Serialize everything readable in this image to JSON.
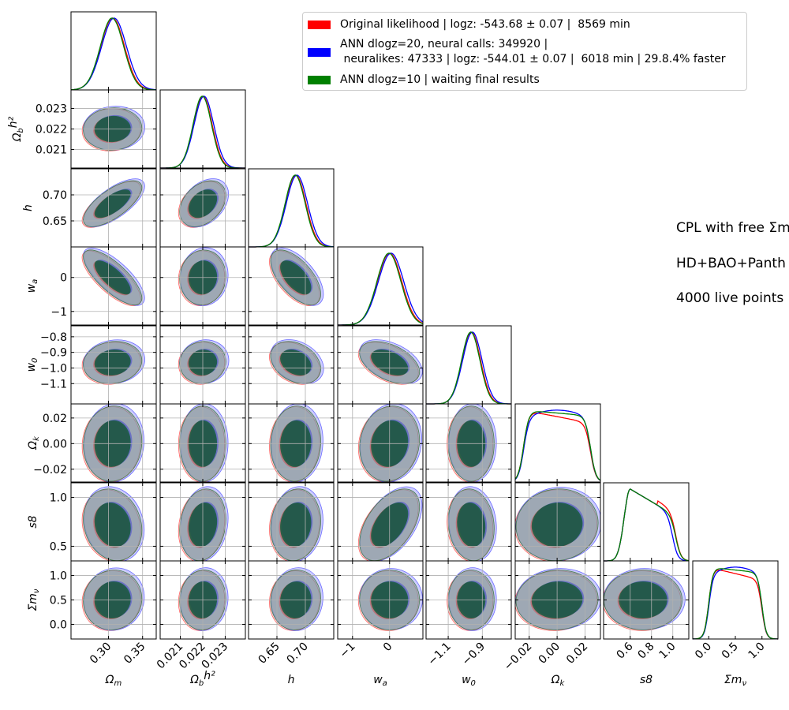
{
  "chart_data": {
    "type": "corner",
    "parameters": [
      {
        "key": "Om",
        "label": "Ω",
        "sub": "m",
        "sup": "",
        "range": [
          0.245,
          0.37
        ],
        "ticks": [
          0.3,
          0.35
        ],
        "tick_labels": [
          "0.30",
          "0.35"
        ],
        "mean": 0.306,
        "sd": 0.0175
      },
      {
        "key": "Obh2",
        "label": "Ω",
        "sub": "b",
        "sup": "h²",
        "range": [
          0.0201,
          0.0239
        ],
        "ticks": [
          0.021,
          0.022,
          0.023
        ],
        "tick_labels": [
          "0.021",
          "0.022",
          "0.023"
        ],
        "mean": 0.022,
        "sd": 0.00042
      },
      {
        "key": "h",
        "label": "h",
        "sub": "",
        "sup": "",
        "range": [
          0.6,
          0.75
        ],
        "ticks": [
          0.65,
          0.7
        ],
        "tick_labels": [
          "0.65",
          "0.70"
        ],
        "mean": 0.683,
        "sd": 0.018
      },
      {
        "key": "wa",
        "label": "w",
        "sub": "a",
        "sup": "",
        "range": [
          -1.4,
          0.9
        ],
        "ticks": [
          -1,
          0
        ],
        "tick_labels": [
          "−1",
          "0"
        ],
        "mean": 0.0,
        "sd": 0.33
      },
      {
        "key": "w0",
        "label": "w",
        "sub": "0",
        "sup": "",
        "range": [
          -1.23,
          -0.73
        ],
        "ticks": [
          -1.1,
          -0.9
        ],
        "tick_labels": [
          "−1.1",
          "−0.9"
        ],
        "y_ticks": [
          -0.8,
          -0.9,
          -1.0,
          -1.1
        ],
        "y_tick_labels": [
          "−0.8",
          "−0.9",
          "−1.0",
          "−1.1"
        ],
        "mean": -0.965,
        "sd": 0.055
      },
      {
        "key": "Ok",
        "label": "Ω",
        "sub": "k",
        "sup": "",
        "range": [
          -0.03,
          0.031
        ],
        "ticks": [
          -0.02,
          0.0,
          0.02
        ],
        "tick_labels": [
          "−0.02",
          "0.00",
          "0.02"
        ],
        "mean": 0.0,
        "sd": 0.012
      },
      {
        "key": "s8",
        "label": "s8",
        "sub": "",
        "sup": "",
        "range": [
          0.35,
          1.15
        ],
        "ticks": [
          0.6,
          0.8,
          1.0
        ],
        "tick_labels": [
          "0.6",
          "0.8",
          "1.0"
        ],
        "y_ticks": [
          1.0,
          0.5
        ],
        "y_tick_labels": [
          "1.0",
          "0.5"
        ],
        "mean": 0.72,
        "sd": 0.15
      },
      {
        "key": "mnu",
        "label": "Σm",
        "sub": "ν",
        "sup": "",
        "range": [
          -0.3,
          1.3
        ],
        "ticks": [
          0.0,
          0.5,
          1.0
        ],
        "tick_labels": [
          "0.0",
          "0.5",
          "1.0"
        ],
        "mean": 0.5,
        "sd": 0.25
      }
    ],
    "series": [
      {
        "name": "Original likelihood | logz: -543.68 ± 0.07 |  8569 min",
        "color": "#ff0000"
      },
      {
        "name": "ANN dlogz=20, neural calls: 349920 |\n neuralikes: 47333 | logz: -544.01 ± 0.07 |  6018 min | 29.8.4% faster",
        "color": "#0000ff"
      },
      {
        "name": "ANN dlogz=10 | waiting final results",
        "color": "#008000"
      }
    ],
    "correlations": [
      [
        1.0,
        0,
        0,
        0,
        0,
        0,
        0,
        0
      ],
      [
        0.05,
        1.0,
        0,
        0,
        0,
        0,
        0,
        0
      ],
      [
        0.7,
        0.35,
        1.0,
        0,
        0,
        0,
        0,
        0
      ],
      [
        -0.75,
        0.05,
        -0.6,
        1.0,
        0,
        0,
        0,
        0
      ],
      [
        0.1,
        0.05,
        -0.3,
        -0.45,
        1.0,
        0,
        0,
        0
      ],
      [
        0.05,
        0.0,
        0.05,
        0.1,
        0.0,
        1.0,
        0,
        0
      ],
      [
        -0.15,
        0.15,
        0.1,
        0.5,
        -0.1,
        0.05,
        1.0,
        0
      ],
      [
        0.05,
        0.05,
        0.05,
        0.0,
        0.0,
        0.05,
        0.0,
        1.0
      ]
    ],
    "grid": true,
    "legend_position": "top-right"
  },
  "annotations": [
    "CPL with free Σm",
    "HD+BAO+Panth",
    " 4000 live points"
  ]
}
